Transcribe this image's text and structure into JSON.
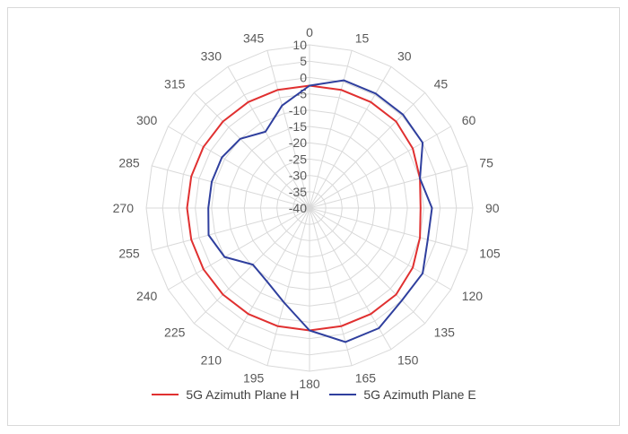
{
  "chart_data": {
    "type": "radar",
    "title": "",
    "categories": [
      "0",
      "15",
      "30",
      "45",
      "60",
      "75",
      "90",
      "105",
      "120",
      "135",
      "150",
      "165",
      "180",
      "195",
      "210",
      "225",
      "240",
      "255",
      "270",
      "285",
      "300",
      "315",
      "330",
      "345"
    ],
    "radial_ticks": [
      "10",
      "5",
      "0",
      "-5",
      "-10",
      "-15",
      "-20",
      "-25",
      "-30",
      "-35",
      "-40"
    ],
    "rlim": [
      -40,
      10
    ],
    "grid": true,
    "legend_position": "bottom",
    "series": [
      {
        "name": "5G Azimuth Plane H",
        "color": "#e03030",
        "values": [
          -2.5,
          -2.5,
          -2.5,
          -2.5,
          -3.5,
          -5,
          -6,
          -5,
          -3.5,
          -2.5,
          -2.5,
          -2.5,
          -2.5,
          -2.5,
          -2.5,
          -2.5,
          -2.5,
          -2.5,
          -2.5,
          -2.5,
          -2.5,
          -2.5,
          -2.5,
          -2.5
        ]
      },
      {
        "name": "5G Azimuth Plane E",
        "color": "#2f3f9e",
        "values": [
          -2.5,
          0.5,
          0.5,
          0.5,
          0,
          -5,
          -2.5,
          -2.5,
          0,
          0,
          2.5,
          2.5,
          -2.5,
          -10,
          -14,
          -15.5,
          -10,
          -8,
          -9,
          -9,
          -9,
          -10,
          -13,
          -7.5
        ]
      }
    ]
  }
}
